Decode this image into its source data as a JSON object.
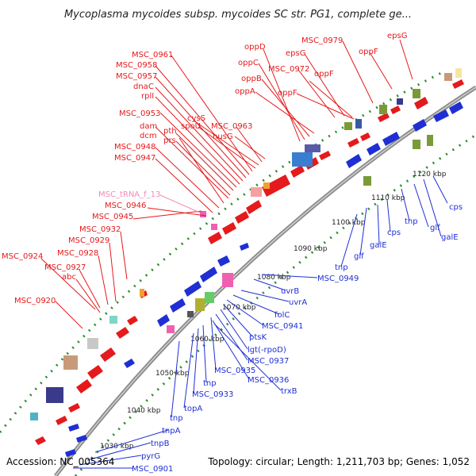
{
  "title": "Mycoplasma mycoides subsp. mycoides SC str. PG1, complete ge...",
  "footer": {
    "accession": "Accession: NC_005364",
    "summary": "Topology: circular; Length: 1,211,703 bp; Genes: 1,052"
  },
  "colors": {
    "forward": "#e41a1c",
    "reverse": "#1f2fd4",
    "rna": "#f28ab5",
    "dots": "#2e8b2e",
    "backbone": "#888888"
  },
  "kbp_ticks": [
    "1030 kbp",
    "1040 kbp",
    "1050 kbp",
    "1060 kbp",
    "1070 kbp",
    "1080 kbp",
    "1090 kbp",
    "1100 kbp",
    "1110 kbp",
    "1120 kbp"
  ],
  "forward_labels": [
    "MSC_0924",
    "MSC_0927",
    "MSC_0928",
    "MSC_0929",
    "MSC_0932",
    "abc",
    "MSC_0920",
    "MSC_0945",
    "MSC_0946",
    "MSC_0947",
    "MSC_0948",
    "dcm",
    "dam",
    "prs",
    "pth",
    "MSC_0953",
    "rplI",
    "dnaC",
    "MSC_0957",
    "MSC_0958",
    "MSC_0961",
    "spoU",
    "cysS",
    "MSC_0963",
    "nusG",
    "oppD",
    "oppC",
    "oppB",
    "oppA",
    "MSC_0972",
    "epsG",
    "oppF",
    "oppF",
    "MSC_0979",
    "oppF",
    "epsG"
  ],
  "rna_labels": [
    "MSC_tRNA_f_13"
  ],
  "reverse_labels": [
    "cps",
    "galE",
    "glf",
    "tnp",
    "cps",
    "galE",
    "glf",
    "tnp",
    "MSC_0949",
    "uvrB",
    "uvrA",
    "folC",
    "MSC_0941",
    "ptsK",
    "lgt(-rpoD)",
    "MSC_0937",
    "MSC_0935",
    "MSC_0936",
    "trxB",
    "tnp",
    "MSC_0933",
    "topA",
    "tnp",
    "tnpA",
    "tnpB",
    "pyrG",
    "MSC_0901"
  ]
}
